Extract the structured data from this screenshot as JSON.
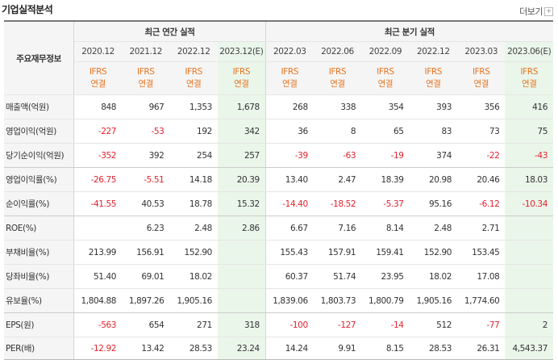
{
  "title": "기업실적분석",
  "more_label": "더보기",
  "more_icon": "plus-box-icon",
  "header": {
    "label": "주요재무정보",
    "annual_group": "최근 연간 실적",
    "quarter_group": "최근 분기 실적",
    "periods": [
      "2020.12",
      "2021.12",
      "2022.12",
      "2023.12(E)",
      "2022.03",
      "2022.06",
      "2022.09",
      "2022.12",
      "2023.03",
      "2023.06(E)"
    ],
    "std_line1": "IFRS",
    "std_line2": "연결"
  },
  "colors": {
    "negative": "#e3222d",
    "standard": "#e8731e",
    "estimate_bg": "#eaf6ea"
  },
  "rows": [
    {
      "label": "매출액(억원)",
      "values": [
        "848",
        "967",
        "1,353",
        "1,678",
        "268",
        "338",
        "354",
        "393",
        "356",
        "416"
      ]
    },
    {
      "label": "영업이익(억원)",
      "values": [
        "-227",
        "-53",
        "192",
        "342",
        "36",
        "8",
        "65",
        "83",
        "73",
        "75"
      ]
    },
    {
      "label": "당기순이익(억원)",
      "values": [
        "-352",
        "392",
        "254",
        "257",
        "-39",
        "-63",
        "-19",
        "374",
        "-22",
        "-43"
      ]
    },
    {
      "label": "영업이익률(%)",
      "values": [
        "-26.75",
        "-5.51",
        "14.18",
        "20.39",
        "13.40",
        "2.47",
        "18.39",
        "20.98",
        "20.46",
        "18.03"
      ]
    },
    {
      "label": "순이익률(%)",
      "values": [
        "-41.55",
        "40.53",
        "18.78",
        "15.32",
        "-14.40",
        "-18.52",
        "-5.37",
        "95.16",
        "-6.12",
        "-10.34"
      ]
    },
    {
      "label": "ROE(%)",
      "values": [
        "",
        "6.23",
        "2.48",
        "2.86",
        "6.67",
        "7.16",
        "8.14",
        "2.48",
        "2.71",
        ""
      ]
    },
    {
      "label": "부채비율(%)",
      "values": [
        "213.99",
        "156.91",
        "152.90",
        "",
        "155.43",
        "157.91",
        "159.41",
        "152.90",
        "153.45",
        ""
      ]
    },
    {
      "label": "당좌비율(%)",
      "values": [
        "51.40",
        "69.01",
        "18.02",
        "",
        "60.37",
        "51.74",
        "23.95",
        "18.02",
        "17.08",
        ""
      ]
    },
    {
      "label": "유보율(%)",
      "values": [
        "1,804.88",
        "1,897.26",
        "1,905.16",
        "",
        "1,839.06",
        "1,803.73",
        "1,800.79",
        "1,905.16",
        "1,774.60",
        ""
      ]
    },
    {
      "label": "EPS(원)",
      "values": [
        "-563",
        "654",
        "271",
        "318",
        "-100",
        "-127",
        "-14",
        "512",
        "-77",
        "2"
      ]
    },
    {
      "label": "PER(배)",
      "values": [
        "-12.92",
        "13.42",
        "28.53",
        "23.24",
        "14.24",
        "9.91",
        "8.15",
        "28.53",
        "26.31",
        "4,543.37"
      ]
    }
  ]
}
